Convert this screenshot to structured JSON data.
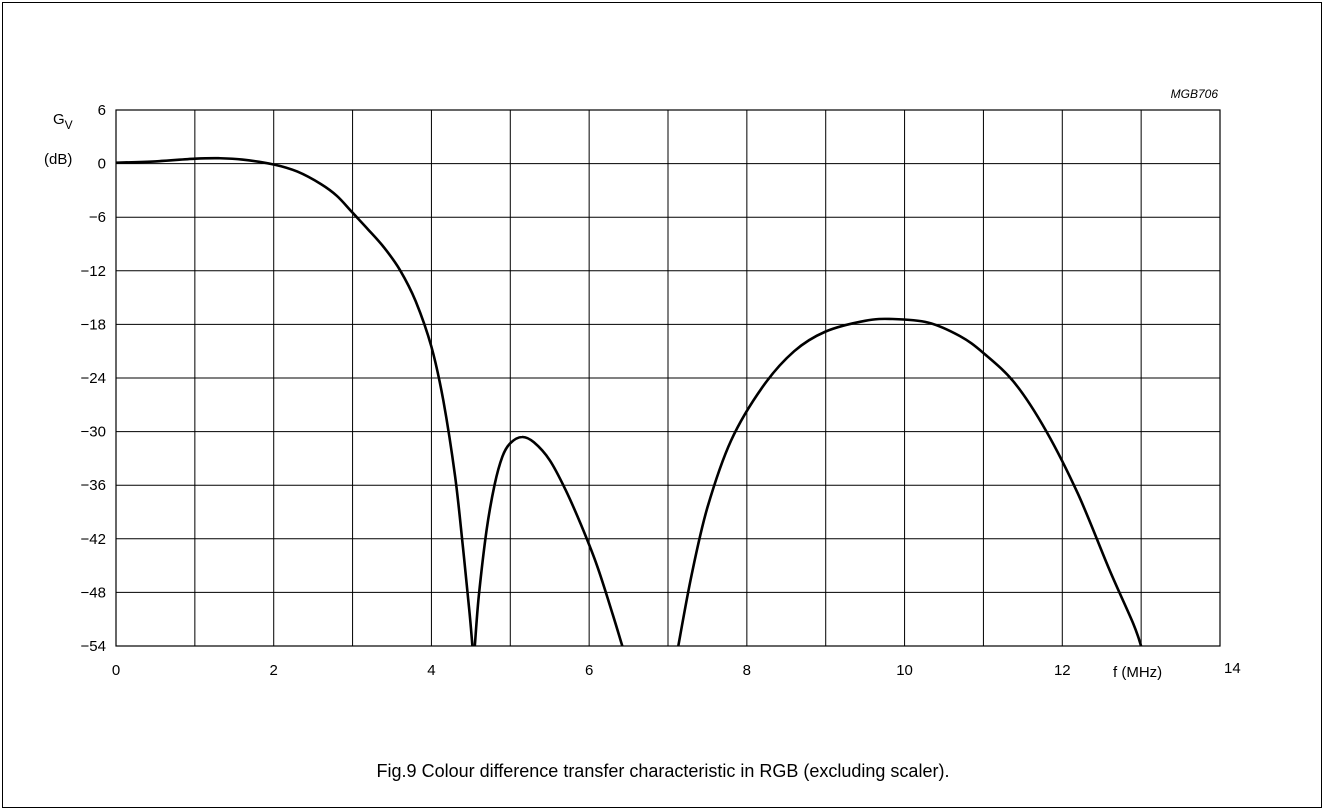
{
  "figure_code": "MGB706",
  "caption": "Fig.9  Colour difference transfer characteristic in RGB (excluding scaler).",
  "chart_data": {
    "type": "line",
    "ylabel_main": "G",
    "ylabel_sub": "V",
    "yunit": "(dB)",
    "xlabel": "f  (MHz)",
    "xlim": [
      0,
      14
    ],
    "ylim": [
      -54,
      6
    ],
    "xticks": [
      0,
      2,
      4,
      6,
      8,
      10,
      12,
      14
    ],
    "xtick_labels": [
      "0",
      "2",
      "4",
      "6",
      "8",
      "10",
      "12",
      "14"
    ],
    "yticks": [
      6,
      0,
      -6,
      -12,
      -18,
      -24,
      -30,
      -36,
      -42,
      -48,
      -54
    ],
    "ytick_labels": [
      "6",
      "0",
      "−6",
      "−12",
      "−18",
      "−24",
      "−30",
      "−36",
      "−42",
      "−48",
      "−54"
    ],
    "grid": true,
    "grid_x_step": 1,
    "grid_y_step": 6,
    "series": [
      {
        "segments": [
          [
            [
              0,
              0.1
            ],
            [
              0.5,
              0.25
            ],
            [
              1.0,
              0.55
            ],
            [
              1.3,
              0.6
            ],
            [
              1.6,
              0.45
            ],
            [
              2.0,
              -0.1
            ],
            [
              2.3,
              -0.9
            ],
            [
              2.6,
              -2.3
            ],
            [
              2.8,
              -3.6
            ],
            [
              3.0,
              -5.5
            ],
            [
              3.2,
              -7.4
            ],
            [
              3.4,
              -9.4
            ],
            [
              3.6,
              -11.9
            ],
            [
              3.8,
              -15.4
            ],
            [
              4.0,
              -20.5
            ],
            [
              4.15,
              -26.5
            ],
            [
              4.3,
              -35
            ],
            [
              4.4,
              -43
            ],
            [
              4.48,
              -50
            ],
            [
              4.52,
              -54
            ]
          ],
          [
            [
              4.55,
              -54
            ],
            [
              4.6,
              -48.5
            ],
            [
              4.7,
              -41
            ],
            [
              4.8,
              -36
            ],
            [
              4.9,
              -32.8
            ],
            [
              5.0,
              -31.3
            ],
            [
              5.15,
              -30.6
            ],
            [
              5.3,
              -31.2
            ],
            [
              5.5,
              -33.2
            ],
            [
              5.7,
              -36.5
            ],
            [
              5.9,
              -40.5
            ],
            [
              6.1,
              -45
            ],
            [
              6.3,
              -50.5
            ],
            [
              6.42,
              -54
            ]
          ],
          [
            [
              7.13,
              -54
            ],
            [
              7.3,
              -46
            ],
            [
              7.5,
              -38.5
            ],
            [
              7.8,
              -31
            ],
            [
              8.2,
              -25
            ],
            [
              8.6,
              -21
            ],
            [
              9.0,
              -18.8
            ],
            [
              9.5,
              -17.6
            ],
            [
              9.85,
              -17.4
            ],
            [
              10.3,
              -17.8
            ],
            [
              10.7,
              -19.3
            ],
            [
              11.0,
              -21.2
            ],
            [
              11.4,
              -24.6
            ],
            [
              11.8,
              -30
            ],
            [
              12.2,
              -37
            ],
            [
              12.6,
              -45.5
            ],
            [
              12.9,
              -51.5
            ],
            [
              13.0,
              -54
            ]
          ]
        ]
      }
    ]
  }
}
